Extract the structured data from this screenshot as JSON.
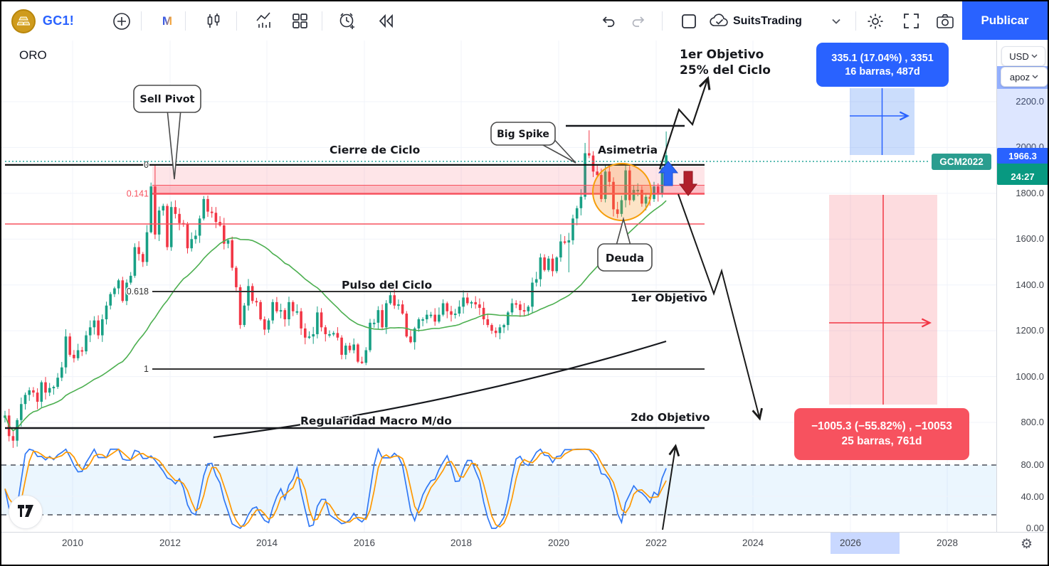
{
  "toolbar": {
    "symbol": "GC1!",
    "interval": "M",
    "account": "SuitsTrading",
    "publish_label": "Publicar",
    "icons": [
      "gold-logo",
      "add-symbol",
      "interval",
      "candles",
      "indicators",
      "layout-grid",
      "alert-plus",
      "replay",
      "undo",
      "redo",
      "layout-square",
      "cloud-sync",
      "chevron-down",
      "settings-gear",
      "fullscreen",
      "camera"
    ]
  },
  "chart": {
    "symbol_label": "ORO",
    "contract_badge": "GCM2022",
    "price_badge": "1966.3",
    "countdown_badge": "24:27",
    "annotations": {
      "sell_pivot": "Sell Pivot",
      "big_spike": "Big Spike",
      "asimetria": "Asimetria",
      "cierre_de_ciclo": "Cierre de Ciclo",
      "objetivo1_top_line1": "1er Objetivo",
      "objetivo1_top_line2": "25% del Ciclo",
      "pulso_del_ciclo": "Pulso del Ciclo",
      "objetivo1_mid": "1er Objetivo",
      "regularidad": "Regularidad Macro M/do",
      "objetivo2": "2do Objetivo",
      "deuda": "Deuda"
    },
    "measure_up": {
      "line1": "335.1 (17.04%) , 3351",
      "line2": "16 barras, 487d"
    },
    "measure_down": {
      "line1": "−1005.3 (−55.82%) , −10053",
      "line2": "25 barras, 761d"
    },
    "colors": {
      "accent_blue": "#2962ff",
      "up_teal": "#18a085",
      "down_red": "#f23645",
      "fib_red": "#f7525f",
      "ma_green": "#4caf50",
      "stoch_k": "#3179f5",
      "stoch_d": "#ff9800",
      "badge_teal": "#089981",
      "contract_teal": "#2a9d8f"
    }
  },
  "price_scale": {
    "currency": "USD",
    "unit": "apoz"
  },
  "axes": {
    "price_ticks": [
      "2200.0",
      "2000.0",
      "1800.0",
      "1600.0",
      "1400.0",
      "1200.0",
      "1000.0",
      "800.0"
    ],
    "osc_ticks": [
      "80.00",
      "40.00",
      "0.00"
    ],
    "years": [
      "2010",
      "2012",
      "2014",
      "2016",
      "2018",
      "2020",
      "2022",
      "2024",
      "2026",
      "2028"
    ]
  },
  "chart_data": {
    "type": "candlestick",
    "title": "ORO",
    "instrument": "GC1!",
    "interval": "1M",
    "x_range": [
      "2008-08",
      "2022-03"
    ],
    "last_price": 1966.3,
    "open_first": 820,
    "monthly_closes": [
      830,
      740,
      720,
      810,
      880,
      920,
      940,
      930,
      890,
      975,
      930,
      950,
      955,
      995,
      1040,
      1175,
      1095,
      1080,
      1115,
      1110,
      1180,
      1215,
      1245,
      1180,
      1250,
      1310,
      1360,
      1385,
      1420,
      1330,
      1410,
      1440,
      1565,
      1535,
      1500,
      1630,
      1830,
      1620,
      1725,
      1745,
      1565,
      1740,
      1710,
      1670,
      1665,
      1560,
      1600,
      1615,
      1690,
      1775,
      1720,
      1715,
      1675,
      1660,
      1580,
      1595,
      1475,
      1390,
      1225,
      1310,
      1395,
      1330,
      1325,
      1250,
      1205,
      1245,
      1325,
      1285,
      1290,
      1250,
      1325,
      1285,
      1285,
      1210,
      1170,
      1175,
      1185,
      1280,
      1215,
      1185,
      1185,
      1190,
      1170,
      1095,
      1135,
      1115,
      1140,
      1065,
      1060,
      1115,
      1235,
      1235,
      1290,
      1215,
      1320,
      1355,
      1310,
      1315,
      1275,
      1175,
      1150,
      1210,
      1250,
      1250,
      1270,
      1270,
      1240,
      1270,
      1320,
      1285,
      1270,
      1275,
      1305,
      1345,
      1320,
      1325,
      1315,
      1300,
      1250,
      1225,
      1200,
      1190,
      1215,
      1225,
      1280,
      1320,
      1315,
      1290,
      1285,
      1305,
      1410,
      1425,
      1520,
      1465,
      1515,
      1460,
      1520,
      1590,
      1585,
      1595,
      1690,
      1735,
      1785,
      1975,
      1965,
      1895,
      1880,
      1775,
      1895,
      1850,
      1730,
      1710,
      1770,
      1900,
      1770,
      1815,
      1815,
      1755,
      1785,
      1775,
      1830,
      1795,
      1910,
      1966
    ],
    "wick_spikes": {
      "37": {
        "high": 1921
      },
      "139": {
        "low": 1455
      },
      "143": {
        "high": 2020
      },
      "144": {
        "high": 2075
      },
      "163": {
        "high": 2070,
        "low": 1878
      }
    },
    "moving_average_period": 30,
    "stochastic": {
      "period": 10,
      "smooth": 3,
      "upper_band": 80,
      "lower_band": 20
    },
    "fib_levels": [
      {
        "label": "0",
        "price": 1924
      },
      {
        "label": "0.141",
        "price": 1798
      },
      {
        "label": "",
        "price": 1666
      },
      {
        "label": "0.618",
        "price": 1371
      },
      {
        "label": "1",
        "price": 1033
      }
    ],
    "drawn_levels": {
      "cycle_top": 2094,
      "second_target": 775
    }
  }
}
